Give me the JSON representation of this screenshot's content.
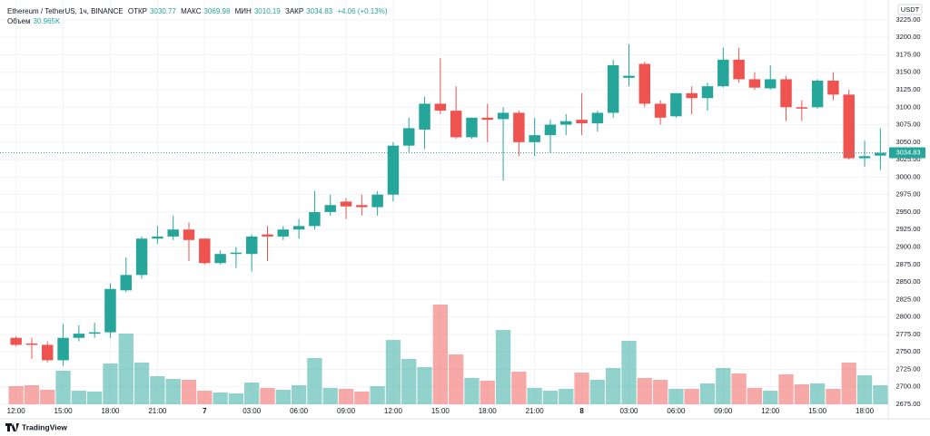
{
  "chart_data": {
    "type": "candlestick",
    "title": "Ethereum / TetherUS, 1ч, BINANCE",
    "open_name": "ОТКР",
    "high_name": "МАКС",
    "low_name": "МИН",
    "close_name": "ЗАКР",
    "change_label": "+4.06 (+0.13%)",
    "volume_name": "Объем",
    "volume_label": "30.965K",
    "currency": "USDT",
    "brand": "TradingView",
    "up_color": "#26a69a",
    "down_color": "#ef5350",
    "grid": true,
    "categories": [
      "12:00",
      null,
      null,
      "15:00",
      null,
      null,
      "18:00",
      null,
      null,
      "21:00",
      null,
      null,
      "7",
      null,
      null,
      "03:00",
      null,
      null,
      "06:00",
      null,
      null,
      "09:00",
      null,
      null,
      "12:00",
      null,
      null,
      "15:00",
      null,
      null,
      "18:00",
      null,
      null,
      "21:00",
      null,
      null,
      "8",
      null,
      null,
      "03:00",
      null,
      null,
      "06:00",
      null,
      null,
      "09:00",
      null,
      null,
      "12:00",
      null,
      null,
      "15:00",
      null,
      null,
      "18:00",
      null
    ],
    "open": [
      2770,
      2762,
      2760,
      2738,
      2770,
      2776,
      2778,
      2838,
      2860,
      2912,
      2915,
      2925,
      2912,
      2877,
      2890,
      2890,
      2918,
      2915,
      2925,
      2930,
      2950,
      2965,
      2960,
      2957,
      2975,
      3045,
      3068,
      3105,
      3095,
      3057,
      3085,
      3083,
      3092,
      3050,
      3060,
      3075,
      3082,
      3077,
      3092,
      3142,
      3162,
      3105,
      3087,
      3120,
      3113,
      3130,
      3168,
      3140,
      3127,
      3140,
      3100,
      3100,
      3138,
      3118,
      3027,
      3030.77
    ],
    "high": [
      2772,
      2770,
      2765,
      2790,
      2788,
      2792,
      2848,
      2885,
      2915,
      2930,
      2945,
      2935,
      2912,
      2895,
      2900,
      2918,
      2930,
      2930,
      2940,
      2980,
      2975,
      2970,
      2975,
      2980,
      3050,
      3085,
      3115,
      3170,
      3130,
      3085,
      3105,
      3100,
      3095,
      3085,
      3082,
      3090,
      3120,
      3095,
      3168,
      3190,
      3165,
      3110,
      3120,
      3130,
      3135,
      3185,
      3185,
      3150,
      3160,
      3145,
      3110,
      3140,
      3150,
      3125,
      3052,
      3069.98
    ],
    "low": [
      2758,
      2740,
      2735,
      2730,
      2765,
      2770,
      2770,
      2835,
      2855,
      2905,
      2910,
      2880,
      2875,
      2875,
      2870,
      2865,
      2880,
      2910,
      2912,
      2925,
      2945,
      2940,
      2945,
      2945,
      2965,
      3035,
      3040,
      3090,
      3055,
      3055,
      3050,
      2995,
      3030,
      3030,
      3035,
      3060,
      3060,
      3065,
      3085,
      3130,
      3100,
      3075,
      3085,
      3090,
      3095,
      3128,
      3135,
      3125,
      3125,
      3080,
      3080,
      3098,
      3110,
      3025,
      3015,
      3010.19
    ],
    "close": [
      2760,
      2760,
      2738,
      2770,
      2776,
      2778,
      2840,
      2860,
      2912,
      2915,
      2925,
      2910,
      2877,
      2890,
      2892,
      2915,
      2915,
      2925,
      2930,
      2950,
      2960,
      2958,
      2957,
      2975,
      3045,
      3070,
      3105,
      3095,
      3057,
      3085,
      3082,
      3092,
      3050,
      3060,
      3075,
      3080,
      3077,
      3092,
      3160,
      3145,
      3105,
      3085,
      3120,
      3113,
      3130,
      3168,
      3140,
      3128,
      3140,
      3100,
      3098,
      3138,
      3118,
      3027,
      3030,
      3034.83
    ],
    "volume": [
      29.5,
      31.0,
      23.6,
      54.6,
      22.1,
      20.7,
      66.4,
      115.1,
      67.9,
      45.7,
      41.3,
      39.8,
      22.1,
      19.2,
      17.7,
      35.4,
      26.6,
      23.6,
      31.0,
      75.2,
      26.6,
      25.1,
      20.7,
      29.5,
      104.7,
      73.8,
      60.5,
      162.3,
      81.1,
      42.8,
      38.4,
      121.0,
      53.1,
      26.6,
      22.1,
      25.1,
      51.6,
      39.8,
      59.0,
      103.3,
      42.8,
      39.8,
      25.1,
      25.1,
      33.9,
      59.0,
      50.2,
      26.6,
      22.1,
      48.7,
      32.5,
      33.9,
      25.1,
      67.9,
      47.2,
      30.965
    ],
    "ylim": [
      2675,
      3243
    ],
    "yticks": [
      {
        "value": 2675,
        "label": "2675.00"
      },
      {
        "value": 2700,
        "label": "2700.00"
      },
      {
        "value": 2725,
        "label": "2725.00"
      },
      {
        "value": 2750,
        "label": "2750.00"
      },
      {
        "value": 2775,
        "label": "2775.00"
      },
      {
        "value": 2800,
        "label": "2800.00"
      },
      {
        "value": 2825,
        "label": "2825.00"
      },
      {
        "value": 2850,
        "label": "2850.00"
      },
      {
        "value": 2875,
        "label": "2875.00"
      },
      {
        "value": 2900,
        "label": "2900.00"
      },
      {
        "value": 2925,
        "label": "2925.00"
      },
      {
        "value": 2950,
        "label": "2950.00"
      },
      {
        "value": 2975,
        "label": "2975.00"
      },
      {
        "value": 3000,
        "label": "3000.00"
      },
      {
        "value": 3025,
        "label": "3025.00"
      },
      {
        "value": 3050,
        "label": "3050.00"
      },
      {
        "value": 3075,
        "label": "3075.00"
      },
      {
        "value": 3100,
        "label": "3100.00"
      },
      {
        "value": 3125,
        "label": "3125.00"
      },
      {
        "value": 3150,
        "label": "3150.00"
      },
      {
        "value": 3175,
        "label": "3175.00"
      },
      {
        "value": 3200,
        "label": "3200.00"
      },
      {
        "value": 3225,
        "label": "3225.00"
      }
    ]
  }
}
